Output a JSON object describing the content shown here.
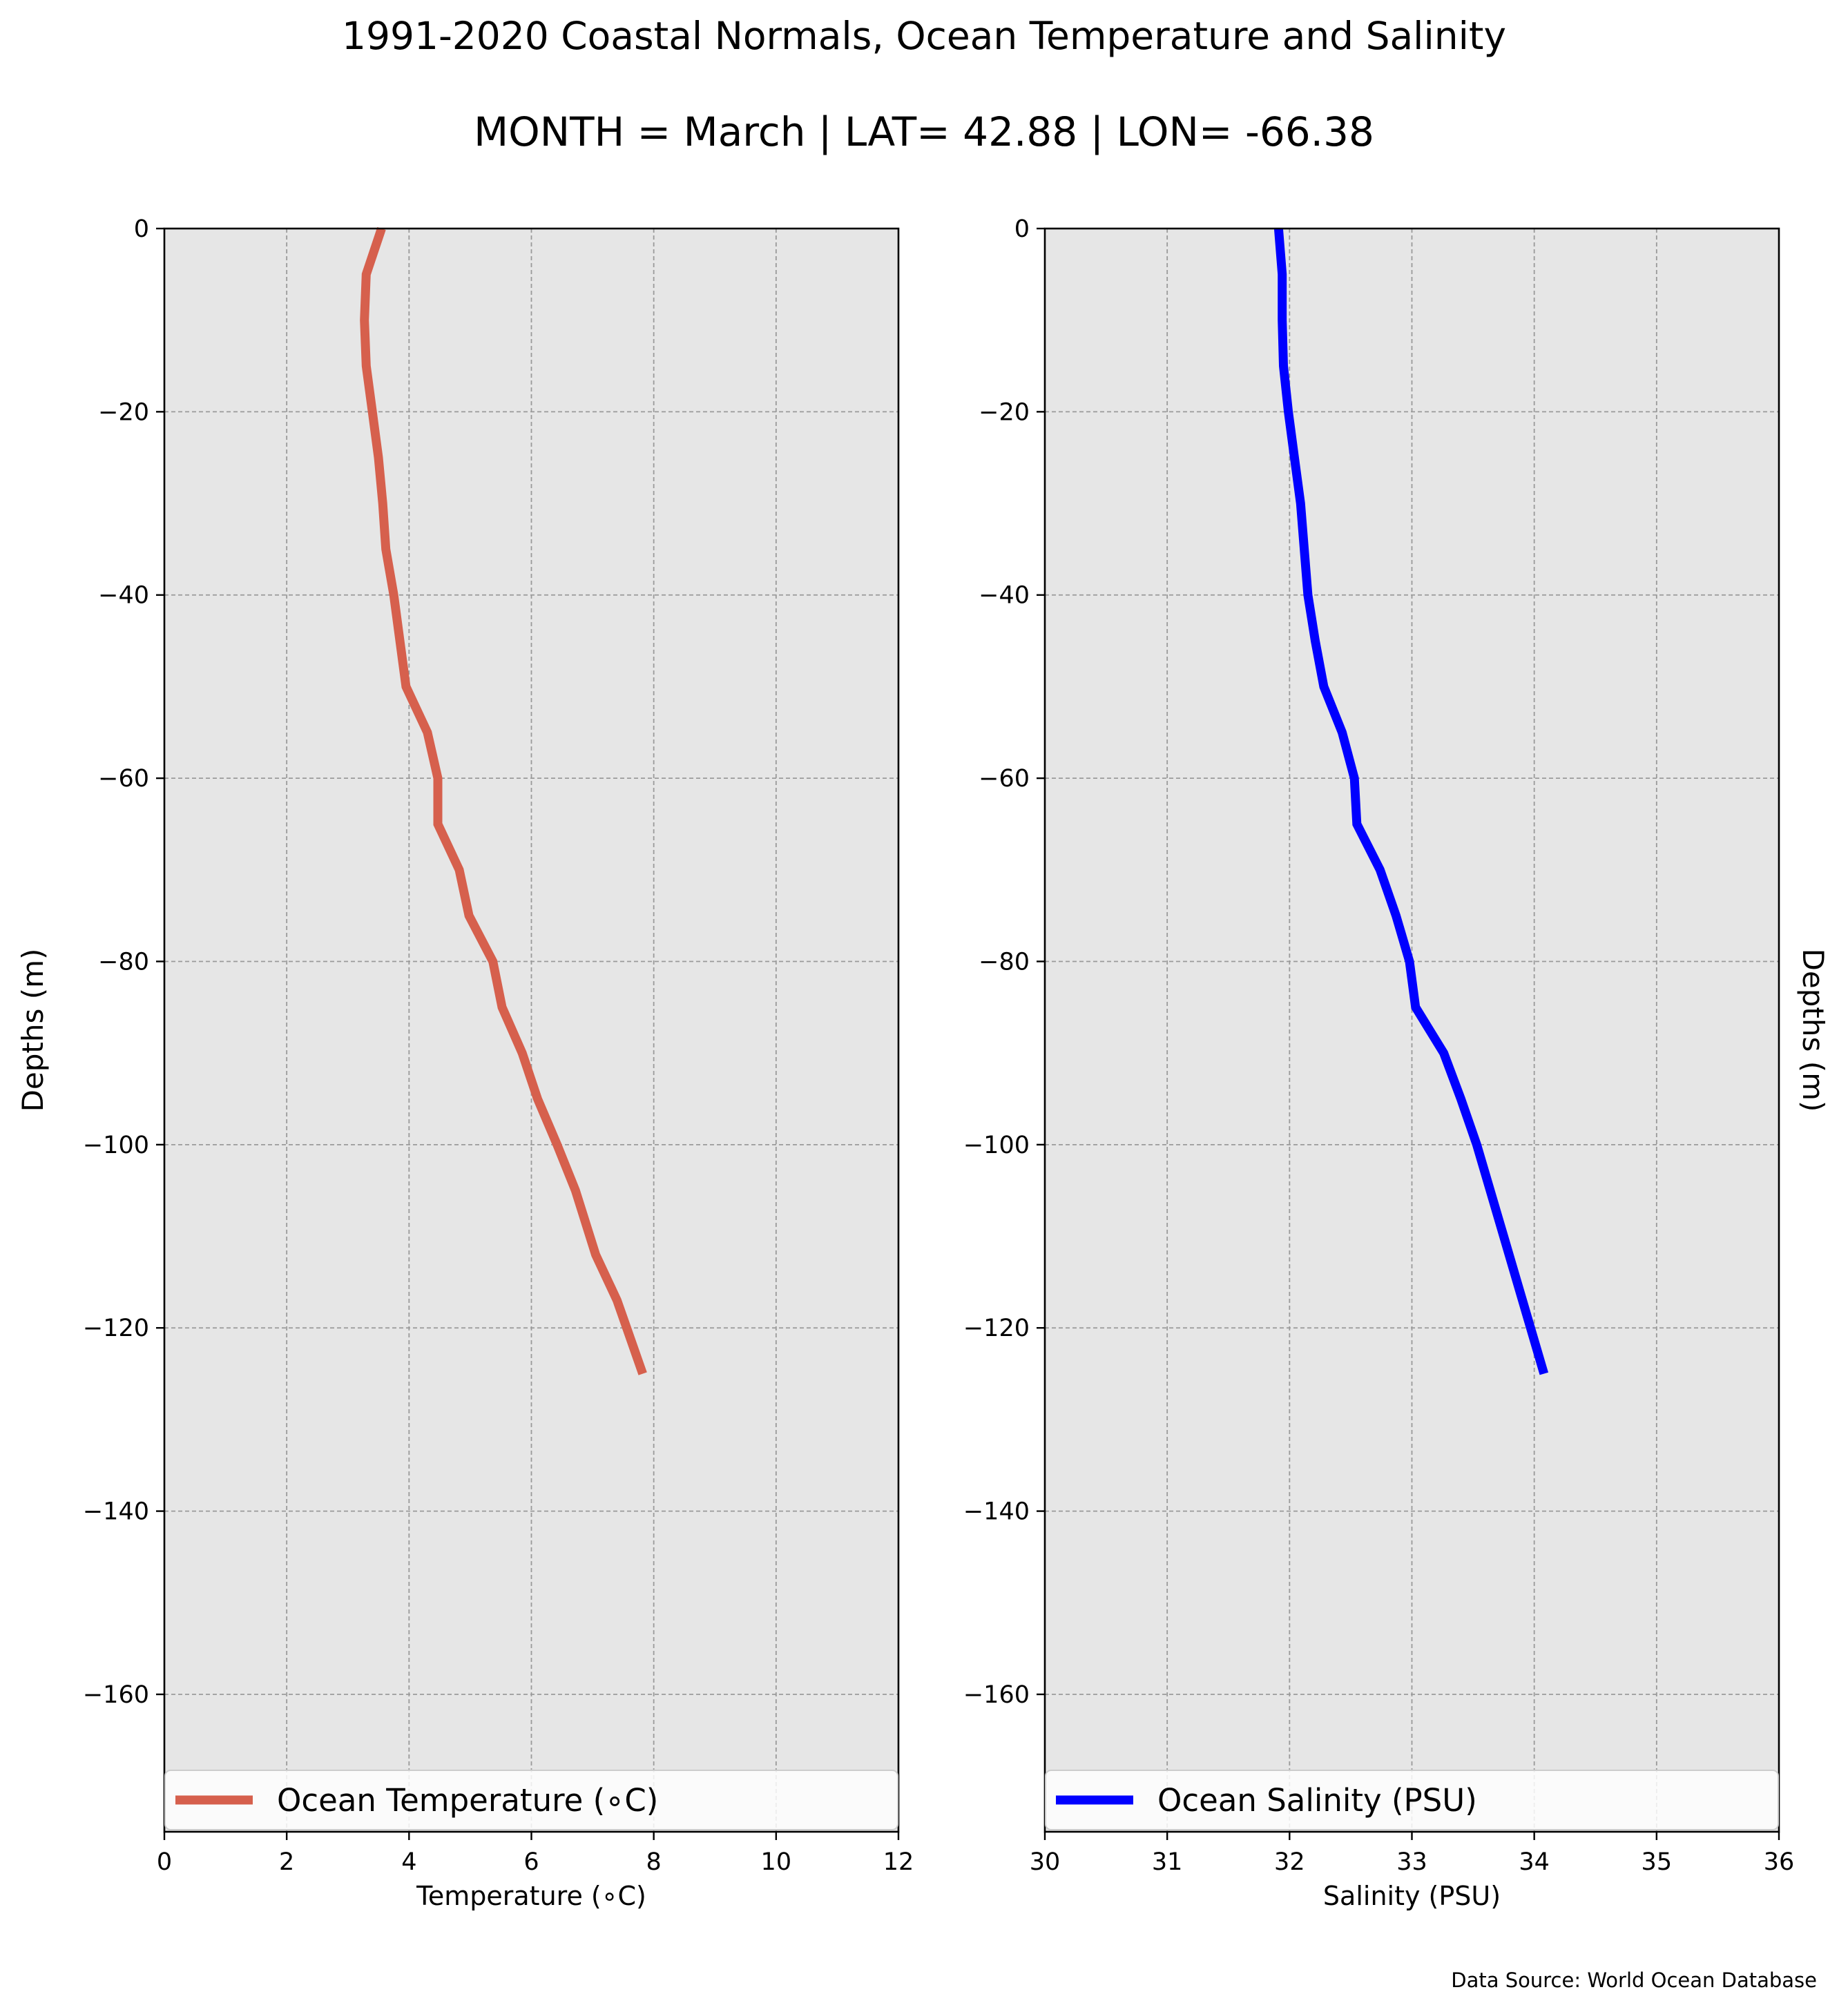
{
  "figure": {
    "title": "1991-2020 Coastal Normals, Ocean Temperature and Salinity",
    "subtitle": "MONTH = March | LAT= 42.88 | LON= -66.38",
    "source_note": "Data Source: World Ocean Database"
  },
  "chart_data": [
    {
      "type": "line",
      "title": "",
      "xlabel": "Temperature (∘C)",
      "ylabel": "Depths (m)",
      "ylabel_side": "left",
      "xlim": [
        0,
        12
      ],
      "ylim": [
        -175,
        0
      ],
      "xticks": [
        0,
        2,
        4,
        6,
        8,
        10,
        12
      ],
      "xtick_labels": [
        "0",
        "2",
        "4",
        "6",
        "8",
        "10",
        "12"
      ],
      "yticks": [
        0,
        -20,
        -40,
        -60,
        -80,
        -100,
        -120,
        -140,
        -160
      ],
      "ytick_labels": [
        "0",
        "−20",
        "−40",
        "−60",
        "−80",
        "−100",
        "−120",
        "−140",
        "−160"
      ],
      "grid": true,
      "legend_position": "bottom",
      "background_color": "#e6e6e6",
      "series": [
        {
          "name": "Ocean Temperature (∘C)",
          "color": "#d6604d",
          "x": [
            3.55,
            3.3,
            3.27,
            3.3,
            3.4,
            3.5,
            3.57,
            3.62,
            3.75,
            3.95,
            4.3,
            4.47,
            4.47,
            4.82,
            4.98,
            5.37,
            5.52,
            5.85,
            6.1,
            6.42,
            6.72,
            7.05,
            7.4,
            7.82
          ],
          "y": [
            0,
            -5,
            -10,
            -15,
            -20,
            -25,
            -30,
            -35,
            -40,
            -50,
            -55,
            -60,
            -65,
            -70,
            -75,
            -80,
            -85,
            -90,
            -95,
            -100,
            -105,
            -112,
            -117,
            -125
          ]
        }
      ]
    },
    {
      "type": "line",
      "title": "",
      "xlabel": "Salinity (PSU)",
      "ylabel": "Depths (m)",
      "ylabel_side": "right",
      "xlim": [
        30,
        36
      ],
      "ylim": [
        -175,
        0
      ],
      "xticks": [
        30,
        31,
        32,
        33,
        34,
        35,
        36
      ],
      "xtick_labels": [
        "30",
        "31",
        "32",
        "33",
        "34",
        "35",
        "36"
      ],
      "yticks": [
        0,
        -20,
        -40,
        -60,
        -80,
        -100,
        -120,
        -140,
        -160
      ],
      "ytick_labels": [
        "0",
        "−20",
        "−40",
        "−60",
        "−80",
        "−100",
        "−120",
        "−140",
        "−160"
      ],
      "grid": true,
      "legend_position": "bottom",
      "background_color": "#e6e6e6",
      "series": [
        {
          "name": "Ocean Salinity (PSU)",
          "color": "#0000ff",
          "x": [
            31.91,
            31.94,
            31.94,
            31.95,
            31.99,
            32.04,
            32.09,
            32.12,
            32.15,
            32.21,
            32.28,
            32.43,
            32.53,
            32.55,
            32.74,
            32.87,
            32.98,
            33.03,
            33.26,
            33.4,
            33.53,
            33.75,
            34.08
          ],
          "y": [
            0,
            -5,
            -10,
            -15,
            -20,
            -25,
            -30,
            -35,
            -40,
            -45,
            -50,
            -55,
            -60,
            -65,
            -70,
            -75,
            -80,
            -85,
            -90,
            -95,
            -100,
            -110,
            -125
          ]
        }
      ]
    }
  ]
}
